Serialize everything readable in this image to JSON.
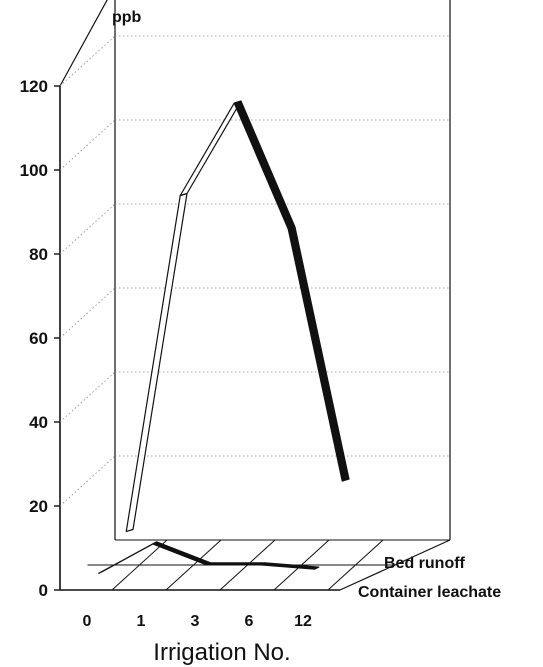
{
  "chart_data": {
    "type": "line",
    "subtype": "3d-ribbon",
    "title": "",
    "xlabel": "Irrigation No.",
    "ylabel": "ppb",
    "categories": [
      "0",
      "1",
      "3",
      "6",
      "12"
    ],
    "yticks": [
      "0",
      "20",
      "40",
      "60",
      "80",
      "100",
      "120"
    ],
    "ylim": [
      0,
      120
    ],
    "grid": "dotted",
    "series": [
      {
        "name": "Bed runoff",
        "values": [
          5,
          85,
          107,
          77,
          17
        ],
        "color": "#111111",
        "fill_rising": "#ffffff"
      },
      {
        "name": "Container leachate",
        "values": [
          1,
          8,
          3,
          3,
          2
        ],
        "color": "#111111"
      }
    ]
  }
}
